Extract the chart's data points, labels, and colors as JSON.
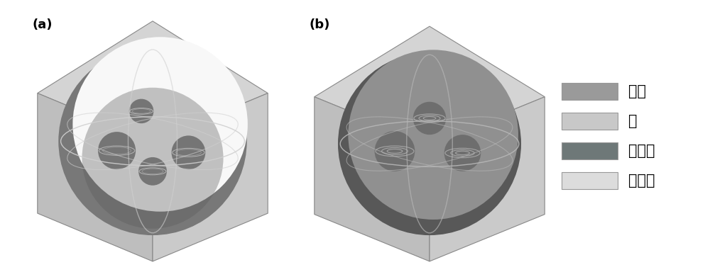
{
  "figure_width": 10.0,
  "figure_height": 3.84,
  "dpi": 100,
  "background_color": "#ffffff",
  "label_a": "(a)",
  "label_b": "(b)",
  "label_fontsize": 13,
  "legend_items": [
    {
      "label": "额粒",
      "color": "#9a9a9a"
    },
    {
      "label": "水",
      "color": "#c8c8c8"
    },
    {
      "label": "天然气",
      "color": "#6e7878"
    },
    {
      "label": "水合物",
      "color": "#dcdcdc"
    }
  ],
  "legend_fontsize": 15,
  "panel_a": {
    "cube_top": "#d4d4d4",
    "cube_left": "#bebebe",
    "cube_right": "#cacaca",
    "cube_edge": "#888888",
    "sphere_outer": "#787878",
    "sphere_grad": [
      "#888888",
      "#9a9a9a",
      "#b0b0b0",
      "#c8c8c8",
      "#dedede",
      "#efefef",
      "#f8f8f8"
    ],
    "sphere_dark": "#5a5a5a",
    "ring_color": "#d0d0d0",
    "small_sphere_color": "#686868",
    "highlight_color": "#f0f0f0"
  },
  "panel_b": {
    "cube_top": "#d4d4d4",
    "cube_left": "#bebebe",
    "cube_right": "#cacaca",
    "cube_edge": "#888888",
    "sphere_outer": "#585858",
    "sphere_grad": [
      "#606060",
      "#686868",
      "#707070",
      "#787878",
      "#808080",
      "#888888",
      "#909090"
    ],
    "sphere_light": "#909090",
    "ring_color": "#b8b8b8",
    "small_sphere_color": "#606060",
    "highlight_color": "#a0a0a0"
  }
}
